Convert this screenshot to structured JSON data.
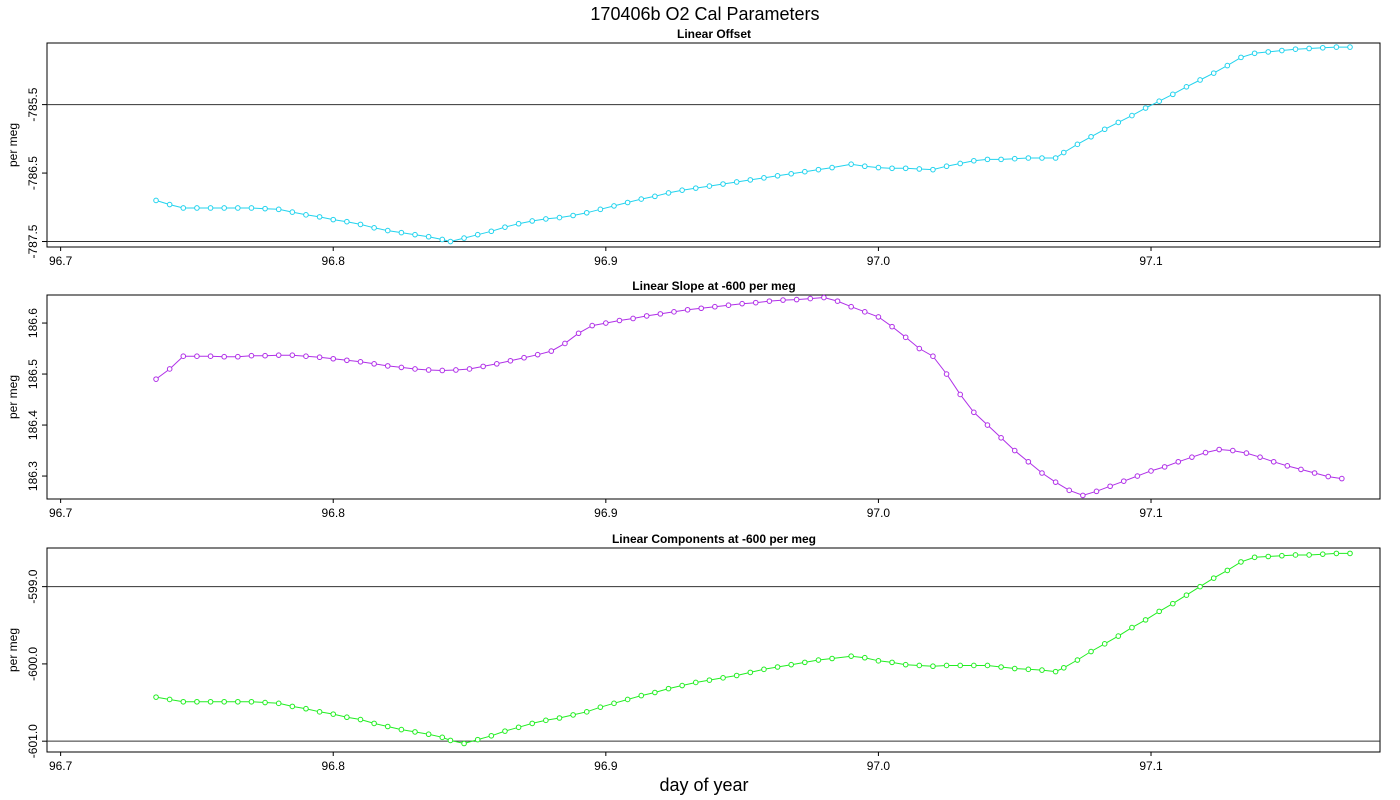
{
  "figure": {
    "title": "170406b   O2 Cal Parameters",
    "xlabel": "day of year"
  },
  "chart_data": [
    {
      "type": "line",
      "title": "Linear Offset",
      "ylabel": "per meg",
      "xlim": [
        96.695,
        97.184
      ],
      "ylim": [
        -787.58,
        -784.6
      ],
      "xticks": [
        "96.7",
        "96.8",
        "96.9",
        "97.0",
        "97.1"
      ],
      "yticks": [
        "-787.5",
        "-786.5",
        "-785.5"
      ],
      "hlines": [
        -787.5,
        -785.5
      ],
      "color": "#22d3ee",
      "series": [
        {
          "x": [
            96.735,
            96.74,
            96.745,
            96.75,
            96.755,
            96.76,
            96.765,
            96.77,
            96.775,
            96.78,
            96.785,
            96.79,
            96.795,
            96.8,
            96.805,
            96.81,
            96.815,
            96.82,
            96.825,
            96.83,
            96.835,
            96.84,
            96.843,
            96.848,
            96.853,
            96.858,
            96.863,
            96.868,
            96.873,
            96.878,
            96.883,
            96.888,
            96.893,
            96.898,
            96.903,
            96.908,
            96.913,
            96.918,
            96.923,
            96.928,
            96.933,
            96.938,
            96.943,
            96.948,
            96.953,
            96.958,
            96.963,
            96.968,
            96.973,
            96.978,
            96.983,
            96.99,
            96.995,
            97.0,
            97.005,
            97.01,
            97.015,
            97.02,
            97.025,
            97.03,
            97.035,
            97.04,
            97.045,
            97.05,
            97.055,
            97.06,
            97.065,
            97.068,
            97.073,
            97.078,
            97.083,
            97.088,
            97.093,
            97.098,
            97.103,
            97.108,
            97.113,
            97.118,
            97.123,
            97.128,
            97.133,
            97.138,
            97.143,
            97.148,
            97.153,
            97.158,
            97.163,
            97.168,
            97.173
          ],
          "y": [
            -786.9,
            -786.96,
            -787.01,
            -787.01,
            -787.01,
            -787.01,
            -787.01,
            -787.01,
            -787.02,
            -787.03,
            -787.07,
            -787.11,
            -787.14,
            -787.18,
            -787.21,
            -787.25,
            -787.3,
            -787.34,
            -787.37,
            -787.4,
            -787.43,
            -787.47,
            -787.5,
            -787.45,
            -787.4,
            -787.35,
            -787.29,
            -787.24,
            -787.2,
            -787.17,
            -787.15,
            -787.12,
            -787.08,
            -787.03,
            -786.98,
            -786.93,
            -786.88,
            -786.84,
            -786.79,
            -786.75,
            -786.72,
            -786.69,
            -786.66,
            -786.63,
            -786.6,
            -786.57,
            -786.54,
            -786.51,
            -786.48,
            -786.45,
            -786.42,
            -786.37,
            -786.4,
            -786.42,
            -786.43,
            -786.43,
            -786.44,
            -786.45,
            -786.4,
            -786.36,
            -786.32,
            -786.3,
            -786.3,
            -786.29,
            -786.28,
            -786.28,
            -786.28,
            -786.2,
            -786.08,
            -785.97,
            -785.86,
            -785.76,
            -785.66,
            -785.55,
            -785.45,
            -785.35,
            -785.24,
            -785.14,
            -785.04,
            -784.93,
            -784.81,
            -784.75,
            -784.73,
            -784.71,
            -784.69,
            -784.68,
            -784.67,
            -784.66,
            -784.66
          ]
        }
      ]
    },
    {
      "type": "line",
      "title": "Linear Slope at -600 per meg",
      "ylabel": "per meg",
      "xlim": [
        96.695,
        97.184
      ],
      "ylim": [
        186.255,
        186.655
      ],
      "xticks": [
        "96.7",
        "96.8",
        "96.9",
        "97.0",
        "97.1"
      ],
      "yticks": [
        "186.3",
        "186.4",
        "186.5",
        "186.6"
      ],
      "hlines": [],
      "color": "#b030e8",
      "series": [
        {
          "x": [
            96.735,
            96.74,
            96.745,
            96.75,
            96.755,
            96.76,
            96.765,
            96.77,
            96.775,
            96.78,
            96.785,
            96.79,
            96.795,
            96.8,
            96.805,
            96.81,
            96.815,
            96.82,
            96.825,
            96.83,
            96.835,
            96.84,
            96.845,
            96.85,
            96.855,
            96.86,
            96.865,
            96.87,
            96.875,
            96.88,
            96.885,
            96.89,
            96.895,
            96.9,
            96.905,
            96.91,
            96.915,
            96.92,
            96.925,
            96.93,
            96.935,
            96.94,
            96.945,
            96.95,
            96.955,
            96.96,
            96.965,
            96.97,
            96.975,
            96.98,
            96.985,
            96.99,
            96.995,
            97.0,
            97.005,
            97.01,
            97.015,
            97.02,
            97.025,
            97.03,
            97.035,
            97.04,
            97.045,
            97.05,
            97.055,
            97.06,
            97.065,
            97.07,
            97.075,
            97.08,
            97.085,
            97.09,
            97.095,
            97.1,
            97.105,
            97.11,
            97.115,
            97.12,
            97.125,
            97.13,
            97.135,
            97.14,
            97.145,
            97.15,
            97.155,
            97.16,
            97.165,
            97.17
          ],
          "y": [
            186.49,
            186.51,
            186.535,
            186.535,
            186.535,
            186.534,
            186.534,
            186.536,
            186.536,
            186.537,
            186.537,
            186.535,
            186.533,
            186.53,
            186.527,
            186.524,
            186.52,
            186.516,
            186.513,
            186.51,
            186.508,
            186.507,
            186.508,
            186.51,
            186.515,
            186.52,
            186.526,
            186.532,
            186.538,
            186.545,
            186.56,
            186.58,
            186.595,
            186.6,
            186.605,
            186.609,
            186.614,
            186.618,
            186.622,
            186.626,
            186.629,
            186.632,
            186.635,
            186.638,
            186.64,
            186.643,
            186.645,
            186.646,
            186.648,
            186.65,
            186.643,
            186.632,
            186.622,
            186.612,
            186.593,
            186.572,
            186.55,
            186.535,
            186.5,
            186.46,
            186.425,
            186.4,
            186.375,
            186.35,
            186.328,
            186.306,
            186.288,
            186.272,
            186.262,
            186.27,
            186.28,
            186.29,
            186.3,
            186.31,
            186.318,
            186.328,
            186.337,
            186.346,
            186.352,
            186.35,
            186.345,
            186.337,
            186.328,
            186.32,
            186.313,
            186.306,
            186.299,
            186.295
          ]
        }
      ]
    },
    {
      "type": "line",
      "title": "Linear Components at -600 per meg",
      "ylabel": "per meg",
      "xlim": [
        96.695,
        97.184
      ],
      "ylim": [
        -601.14,
        -598.5
      ],
      "xticks": [
        "96.7",
        "96.8",
        "96.9",
        "97.0",
        "97.1"
      ],
      "yticks": [
        "-601.0",
        "-600.0",
        "-599.0"
      ],
      "hlines": [
        -601.0,
        -599.0
      ],
      "color": "#22ee22",
      "series": [
        {
          "x": [
            96.735,
            96.74,
            96.745,
            96.75,
            96.755,
            96.76,
            96.765,
            96.77,
            96.775,
            96.78,
            96.785,
            96.79,
            96.795,
            96.8,
            96.805,
            96.81,
            96.815,
            96.82,
            96.825,
            96.83,
            96.835,
            96.84,
            96.843,
            96.848,
            96.853,
            96.858,
            96.863,
            96.868,
            96.873,
            96.878,
            96.883,
            96.888,
            96.893,
            96.898,
            96.903,
            96.908,
            96.913,
            96.918,
            96.923,
            96.928,
            96.933,
            96.938,
            96.943,
            96.948,
            96.953,
            96.958,
            96.963,
            96.968,
            96.973,
            96.978,
            96.983,
            96.99,
            96.995,
            97.0,
            97.005,
            97.01,
            97.015,
            97.02,
            97.025,
            97.03,
            97.035,
            97.04,
            97.045,
            97.05,
            97.055,
            97.06,
            97.065,
            97.068,
            97.073,
            97.078,
            97.083,
            97.088,
            97.093,
            97.098,
            97.103,
            97.108,
            97.113,
            97.118,
            97.123,
            97.128,
            97.133,
            97.138,
            97.143,
            97.148,
            97.153,
            97.158,
            97.163,
            97.168,
            97.173
          ],
          "y": [
            -600.43,
            -600.46,
            -600.49,
            -600.49,
            -600.49,
            -600.49,
            -600.49,
            -600.49,
            -600.5,
            -600.51,
            -600.55,
            -600.58,
            -600.62,
            -600.65,
            -600.69,
            -600.72,
            -600.77,
            -600.81,
            -600.85,
            -600.88,
            -600.91,
            -600.95,
            -600.99,
            -601.03,
            -600.98,
            -600.93,
            -600.87,
            -600.82,
            -600.77,
            -600.73,
            -600.7,
            -600.66,
            -600.62,
            -600.56,
            -600.51,
            -600.46,
            -600.41,
            -600.37,
            -600.32,
            -600.28,
            -600.24,
            -600.21,
            -600.18,
            -600.15,
            -600.11,
            -600.07,
            -600.04,
            -600.01,
            -599.98,
            -599.95,
            -599.93,
            -599.9,
            -599.92,
            -599.96,
            -599.98,
            -600.01,
            -600.02,
            -600.03,
            -600.02,
            -600.02,
            -600.02,
            -600.02,
            -600.04,
            -600.06,
            -600.07,
            -600.08,
            -600.1,
            -600.05,
            -599.95,
            -599.84,
            -599.74,
            -599.64,
            -599.53,
            -599.43,
            -599.32,
            -599.22,
            -599.11,
            -599.0,
            -598.89,
            -598.79,
            -598.68,
            -598.62,
            -598.61,
            -598.6,
            -598.59,
            -598.59,
            -598.58,
            -598.57,
            -598.57
          ]
        }
      ]
    }
  ]
}
